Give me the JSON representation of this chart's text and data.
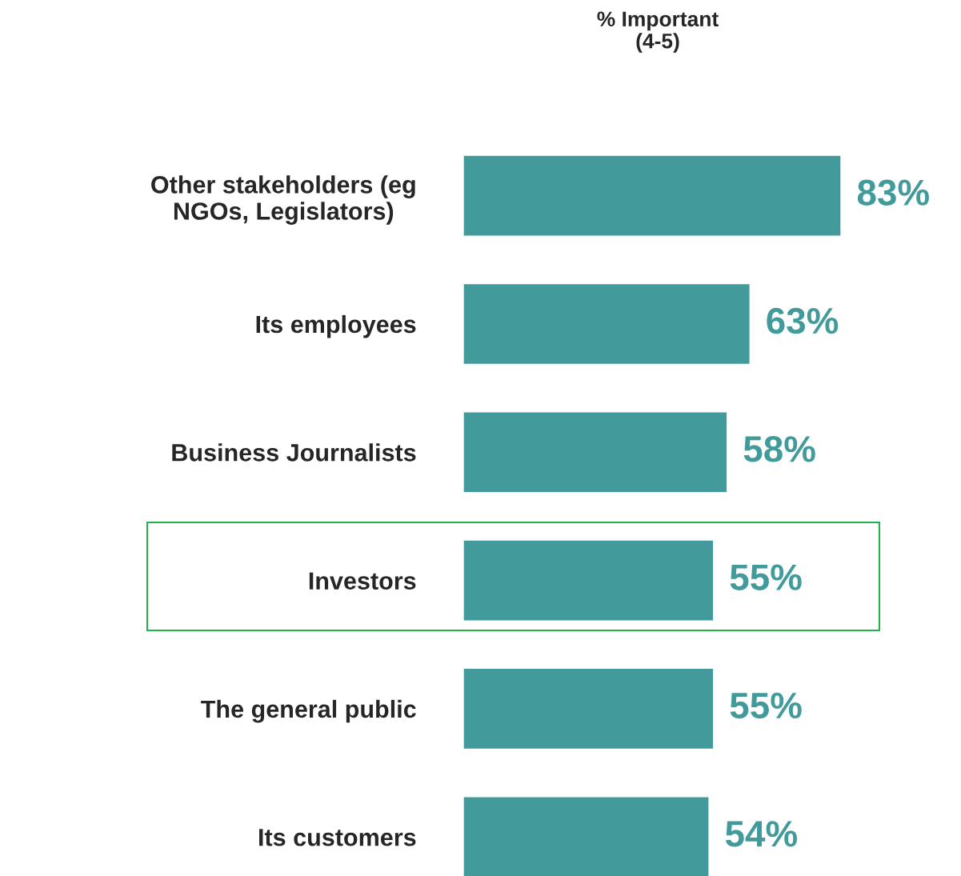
{
  "chart_data": {
    "type": "bar",
    "orientation": "horizontal",
    "title": "% Important\n(4-5)",
    "categories": [
      "Other stakeholders (eg\nNGOs, Legislators)",
      "Its employees",
      "Business Journalists",
      "Investors",
      "The general public",
      "Its customers"
    ],
    "values": [
      83,
      63,
      58,
      55,
      55,
      54
    ],
    "value_labels": [
      "83%",
      "63%",
      "58%",
      "55%",
      "55%",
      "54%"
    ],
    "color": "#429a9a",
    "grid": false,
    "legend": false
  }
}
